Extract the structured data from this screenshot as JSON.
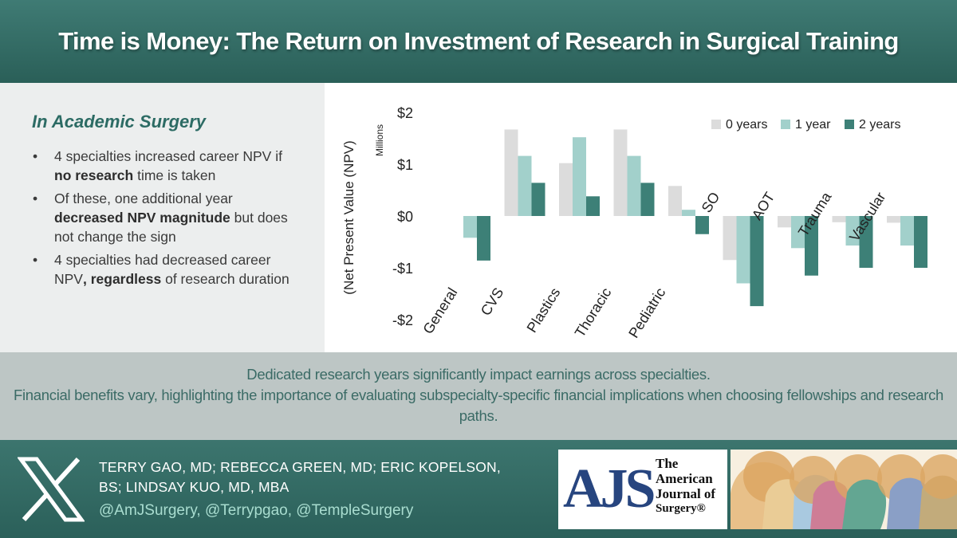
{
  "header": {
    "title": "Time is Money: The Return on Investment of Research in Surgical Training"
  },
  "left_panel": {
    "heading": "In Academic Surgery",
    "bullets": [
      {
        "parts": [
          {
            "t": "4 specialties increased career NPV if "
          },
          {
            "t": "no research",
            "b": true
          },
          {
            "t": " time is taken"
          }
        ]
      },
      {
        "parts": [
          {
            "t": "Of these, one additional year "
          },
          {
            "t": "decreased NPV magnitude",
            "b": true
          },
          {
            "t": " but does not change the sign"
          }
        ]
      },
      {
        "parts": [
          {
            "t": "4 specialties had decreased career NPV"
          },
          {
            "t": ", regardless",
            "b": true
          },
          {
            "t": " of research duration"
          }
        ]
      }
    ]
  },
  "chart_data": {
    "type": "bar",
    "title": "",
    "xlabel": "",
    "ylabel": "(Net Present Value (NPV)",
    "yunit_label": "Millions",
    "ylim": [
      -2,
      2
    ],
    "yticks": [
      2,
      1,
      0,
      -1,
      -2
    ],
    "ytick_labels": [
      "$2",
      "$1",
      "$0",
      "-$1",
      "-$2"
    ],
    "grid": false,
    "legend_position": "top-right",
    "categories": [
      "General",
      "CVS",
      "Plastics",
      "Thoracic",
      "Pediatric",
      "SO",
      "AOT",
      "Trauma",
      "Vascular"
    ],
    "series": [
      {
        "name": "0 years",
        "color": "#dcdcdc",
        "values": [
          0.0,
          1.67,
          1.02,
          1.67,
          0.58,
          -0.85,
          -0.22,
          -0.12,
          -0.13
        ]
      },
      {
        "name": "1 year",
        "color": "#a2d0cb",
        "values": [
          -0.42,
          1.16,
          1.52,
          1.16,
          0.12,
          -1.3,
          -0.62,
          -0.57,
          -0.57
        ]
      },
      {
        "name": "2 years",
        "color": "#3d8077",
        "values": [
          -0.86,
          0.64,
          0.38,
          0.64,
          -0.35,
          -1.74,
          -1.15,
          -1.0,
          -1.0
        ]
      }
    ]
  },
  "summary": {
    "lines": [
      "Dedicated research years significantly impact earnings across specialties.",
      "Financial benefits vary, highlighting the importance of evaluating subspecialty-specific financial implications when choosing fellowships and research",
      "paths."
    ]
  },
  "footer": {
    "authors_line1": "TERRY GAO, MD; REBECCA GREEN, MD; ERIC KOPELSON,",
    "authors_line2": "BS; LINDSAY KUO, MD, MBA",
    "handles": "@AmJSurgery, @Terrypgao, @TempleSurgery",
    "journal_letters": "AJS",
    "journal_name_lines": [
      "The",
      "American",
      "Journal of",
      "Surgery®"
    ],
    "x_logo_icon": "x-logo-icon",
    "heads_art_icon": "heads-illustration-icon"
  }
}
